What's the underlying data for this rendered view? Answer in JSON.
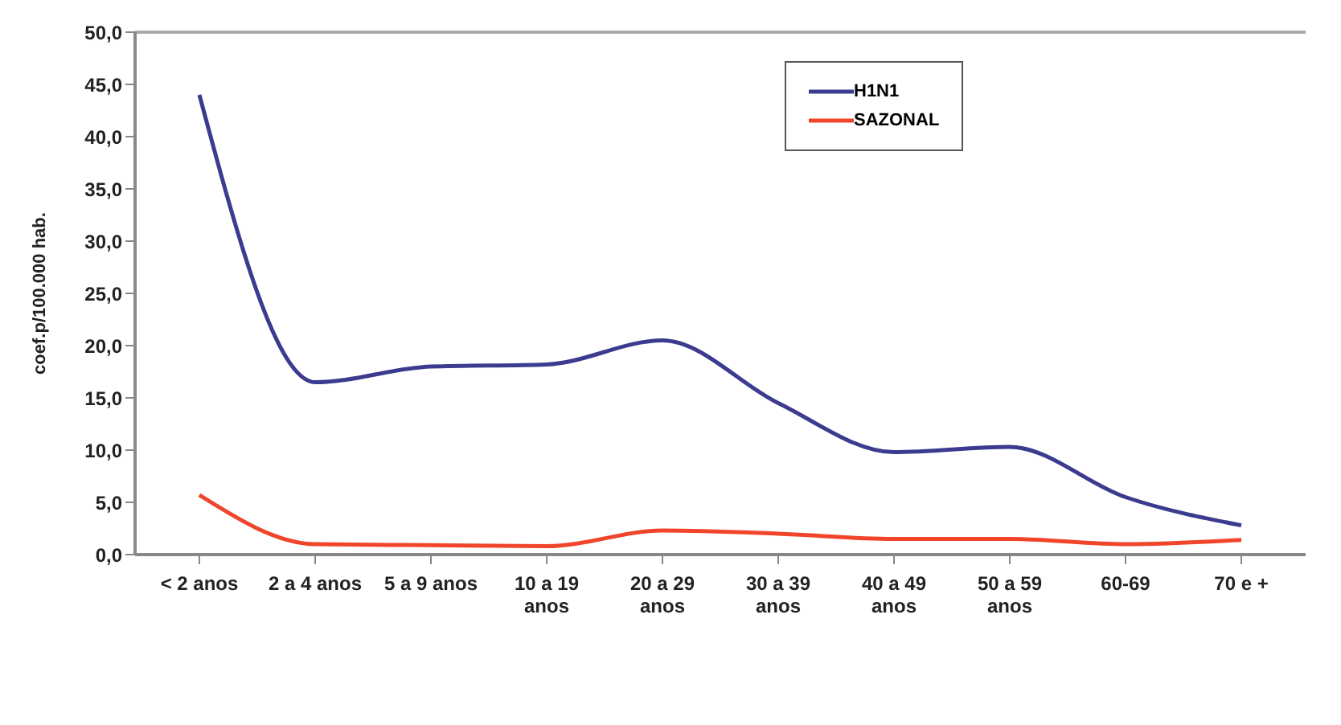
{
  "chart_data": {
    "type": "line",
    "ylabel": "coef.p/100.000 hab.",
    "categories": [
      "< 2 anos",
      "2 a 4 anos",
      "5 a 9 anos",
      "10 a 19 anos",
      "20 a 29 anos",
      "30 a 39 anos",
      "40 a 49 anos",
      "50 a 59 anos",
      "60-69",
      "70 e +"
    ],
    "series": [
      {
        "name": "H1N1",
        "color": "#3b3b8f",
        "values": [
          44.0,
          16.5,
          18.0,
          18.2,
          20.5,
          14.5,
          9.8,
          10.3,
          5.5,
          2.8
        ]
      },
      {
        "name": "SAZONAL",
        "color": "#f0452a",
        "values": [
          5.7,
          1.0,
          0.9,
          0.8,
          2.3,
          2.0,
          1.5,
          1.5,
          1.0,
          1.4
        ]
      }
    ],
    "ylim": [
      0,
      50
    ],
    "yticks": [
      {
        "value": 0,
        "label": "0,0"
      },
      {
        "value": 5,
        "label": "5,0"
      },
      {
        "value": 10,
        "label": "10,0"
      },
      {
        "value": 15,
        "label": "15,0"
      },
      {
        "value": 20,
        "label": "20,0"
      },
      {
        "value": 25,
        "label": "25,0"
      },
      {
        "value": 30,
        "label": "30,0"
      },
      {
        "value": 35,
        "label": "35,0"
      },
      {
        "value": 40,
        "label": "40,0"
      },
      {
        "value": 45,
        "label": "45,0"
      },
      {
        "value": 50,
        "label": "50,0"
      }
    ],
    "grid": false,
    "legend": "top",
    "marker": "none",
    "line_style": "solid"
  }
}
